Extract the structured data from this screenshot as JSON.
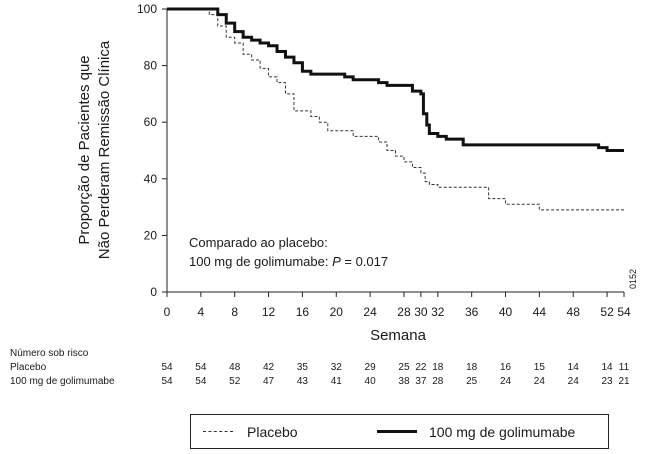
{
  "chart_data": {
    "type": "line",
    "ylabel_lines": [
      "Proporção de Pacientes que",
      "Não Perderam Remissão Clínica"
    ],
    "xlabel": "Semana",
    "xlim": [
      0,
      54
    ],
    "ylim": [
      0,
      100
    ],
    "x_ticks": [
      0,
      4,
      8,
      12,
      16,
      20,
      24,
      28,
      30,
      32,
      36,
      40,
      44,
      48,
      52,
      54
    ],
    "y_ticks": [
      0,
      20,
      40,
      60,
      80,
      100
    ],
    "annotation": {
      "line1": "Comparado ao placebo:",
      "line2_prefix": "100 mg de golimumabe: ",
      "line2_italic": "P",
      "line2_suffix": " = 0.017"
    },
    "figure_code": "0152",
    "series": [
      {
        "name": "Placebo",
        "style": "dashed",
        "color": "#333333",
        "points": [
          [
            0,
            100
          ],
          [
            4,
            100
          ],
          [
            5,
            98
          ],
          [
            6,
            94
          ],
          [
            7,
            90
          ],
          [
            8,
            88
          ],
          [
            9,
            84
          ],
          [
            10,
            82
          ],
          [
            11,
            79
          ],
          [
            12,
            76
          ],
          [
            13,
            74
          ],
          [
            14,
            70
          ],
          [
            15,
            64
          ],
          [
            17,
            62
          ],
          [
            18,
            60
          ],
          [
            19,
            57
          ],
          [
            22,
            55
          ],
          [
            25,
            53
          ],
          [
            26,
            50
          ],
          [
            27,
            48
          ],
          [
            28,
            46
          ],
          [
            29,
            44
          ],
          [
            30,
            42
          ],
          [
            30.5,
            39
          ],
          [
            31,
            38
          ],
          [
            32,
            37
          ],
          [
            38,
            33
          ],
          [
            40,
            31
          ],
          [
            44,
            29
          ],
          [
            54,
            29
          ]
        ]
      },
      {
        "name": "100 mg de golimumabe",
        "style": "solid",
        "color": "#111111",
        "points": [
          [
            0,
            100
          ],
          [
            5,
            100
          ],
          [
            6,
            98
          ],
          [
            7,
            95
          ],
          [
            8,
            92
          ],
          [
            9,
            90
          ],
          [
            10,
            89
          ],
          [
            11,
            88
          ],
          [
            12,
            87
          ],
          [
            13,
            85
          ],
          [
            14,
            83
          ],
          [
            15,
            81
          ],
          [
            16,
            78
          ],
          [
            17,
            77
          ],
          [
            18,
            77
          ],
          [
            21,
            76
          ],
          [
            22,
            75
          ],
          [
            25,
            74
          ],
          [
            26,
            73
          ],
          [
            29,
            71
          ],
          [
            30,
            70
          ],
          [
            30.3,
            63
          ],
          [
            30.7,
            59
          ],
          [
            31,
            56
          ],
          [
            32,
            55
          ],
          [
            33,
            54
          ],
          [
            35,
            52
          ],
          [
            50,
            52
          ],
          [
            51,
            51
          ],
          [
            52,
            50
          ],
          [
            54,
            50
          ]
        ]
      }
    ]
  },
  "risk_table": {
    "header": "Número sob risco",
    "weeks": [
      0,
      4,
      8,
      12,
      16,
      20,
      24,
      28,
      30,
      32,
      36,
      40,
      44,
      48,
      52,
      54
    ],
    "rows": [
      {
        "label": "Placebo",
        "values": [
          "54",
          "54",
          "48",
          "42",
          "35",
          "32",
          "29",
          "25",
          "22",
          "18",
          "18",
          "16",
          "15",
          "14",
          "14",
          "11"
        ]
      },
      {
        "label": "100 mg de golimumabe",
        "values": [
          "54",
          "54",
          "52",
          "47",
          "43",
          "41",
          "40",
          "38",
          "37",
          "28",
          "25",
          "24",
          "24",
          "24",
          "23",
          "21"
        ]
      }
    ]
  },
  "legend": {
    "placebo_label": "Placebo",
    "golimumab_label": "100 mg de golimumabe"
  }
}
